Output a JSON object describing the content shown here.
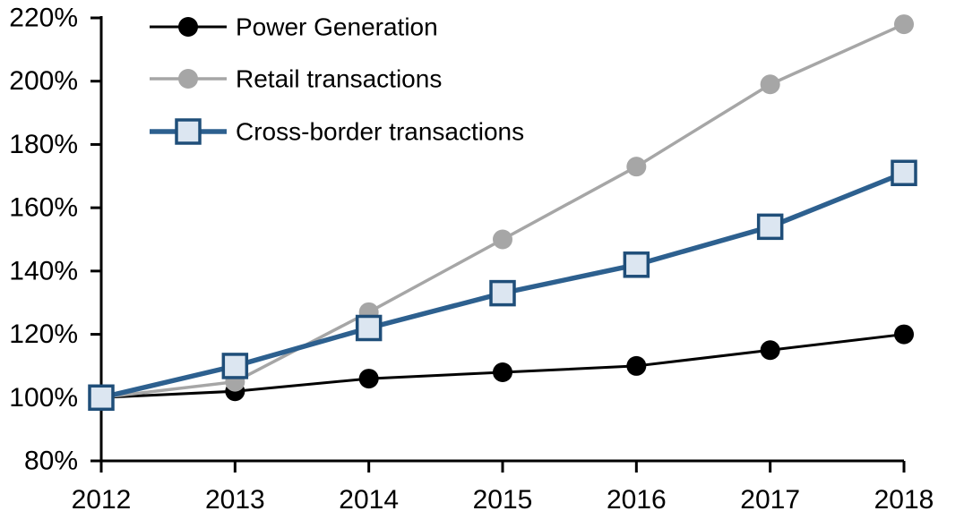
{
  "chart_data": {
    "type": "line",
    "title": "",
    "xlabel": "",
    "ylabel": "",
    "x": [
      2012,
      2013,
      2014,
      2015,
      2016,
      2017,
      2018
    ],
    "series": [
      {
        "name": "Power Generation",
        "values": [
          100,
          102,
          106,
          108,
          110,
          115,
          120
        ],
        "line_color": "#000000",
        "line_width": 3,
        "marker": "circle",
        "marker_fill": "#000000",
        "marker_stroke": "#000000"
      },
      {
        "name": "Retail transactions",
        "values": [
          100,
          105,
          127,
          150,
          173,
          199,
          218
        ],
        "line_color": "#a6a6a6",
        "line_width": 3.5,
        "marker": "circle",
        "marker_fill": "#a6a6a6",
        "marker_stroke": "#a6a6a6"
      },
      {
        "name": "Cross-border transactions",
        "values": [
          100,
          110,
          122,
          133,
          142,
          154,
          171
        ],
        "line_color": "#2d608f",
        "line_width": 5.5,
        "marker": "square",
        "marker_fill": "#dce6f1",
        "marker_stroke": "#1f4e79"
      }
    ],
    "ylim": [
      80,
      220
    ],
    "ytick_step": 20,
    "ytick_suffix": "%",
    "axis_color": "#000000",
    "grid": false,
    "legend_position": "top-left"
  }
}
